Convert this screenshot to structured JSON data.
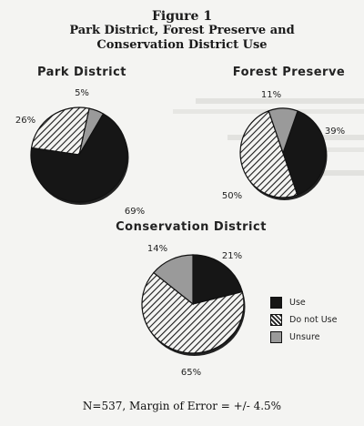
{
  "figure": {
    "title": "Figure 1",
    "subtitle_line1": "Park District, Forest Preserve and",
    "subtitle_line2": "Conservation District Use"
  },
  "chart_data": [
    {
      "type": "pie",
      "title": "Park District",
      "slices": [
        {
          "category": "Use",
          "value": 69,
          "label": "69%"
        },
        {
          "category": "Do not Use",
          "value": 26,
          "label": "26%"
        },
        {
          "category": "Unsure",
          "value": 5,
          "label": "5%"
        }
      ]
    },
    {
      "type": "pie",
      "title": "Forest Preserve",
      "slices": [
        {
          "category": "Use",
          "value": 39,
          "label": "39%"
        },
        {
          "category": "Do not Use",
          "value": 50,
          "label": "50%"
        },
        {
          "category": "Unsure",
          "value": 11,
          "label": "11%"
        }
      ]
    },
    {
      "type": "pie",
      "title": "Conservation District",
      "slices": [
        {
          "category": "Use",
          "value": 21,
          "label": "21%"
        },
        {
          "category": "Do not Use",
          "value": 65,
          "label": "65%"
        },
        {
          "category": "Unsure",
          "value": 14,
          "label": "14%"
        }
      ]
    }
  ],
  "legend": {
    "placement": "right",
    "items": [
      {
        "label": "Use",
        "color": "#161616"
      },
      {
        "label": "Do not Use",
        "color": "hatched"
      },
      {
        "label": "Unsure",
        "color": "#9a9a9a"
      }
    ]
  },
  "footnote": "N=537, Margin of Error = +/-   4.5%"
}
